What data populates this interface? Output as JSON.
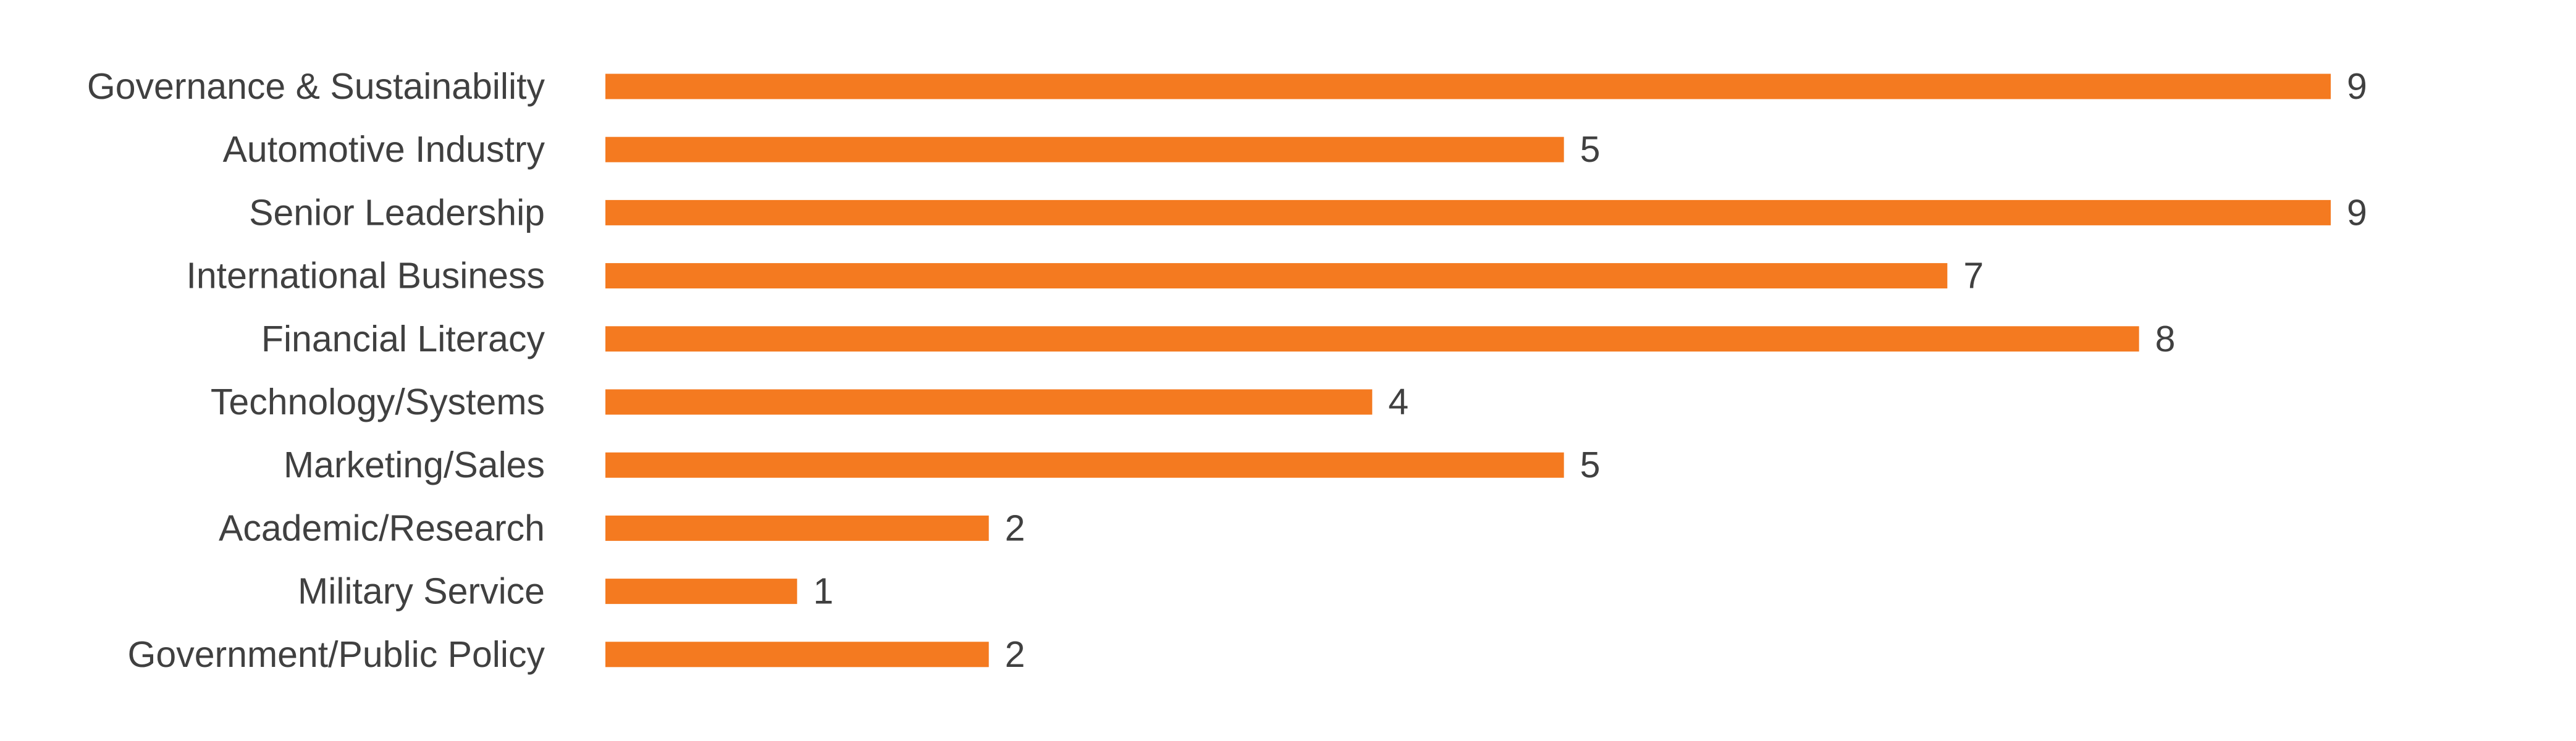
{
  "chart_data": {
    "type": "bar",
    "orientation": "horizontal",
    "title": "",
    "xlabel": "",
    "ylabel": "",
    "grid": false,
    "legend": "none",
    "bar_color": "#F47A20",
    "label_color": "#404040",
    "xlim": [
      0,
      9
    ],
    "categories": [
      "Governance & Sustainability",
      "Automotive Industry",
      "Senior Leadership",
      "International Business",
      "Financial Literacy",
      "Technology/Systems",
      "Marketing/Sales",
      "Academic/Research",
      "Military Service",
      "Government/Public Policy"
    ],
    "values": [
      9,
      5,
      9,
      7,
      8,
      4,
      5,
      2,
      1,
      2
    ],
    "data_labels": [
      "9",
      "5",
      "9",
      "7",
      "8",
      "4",
      "5",
      "2",
      "1",
      "2"
    ]
  }
}
